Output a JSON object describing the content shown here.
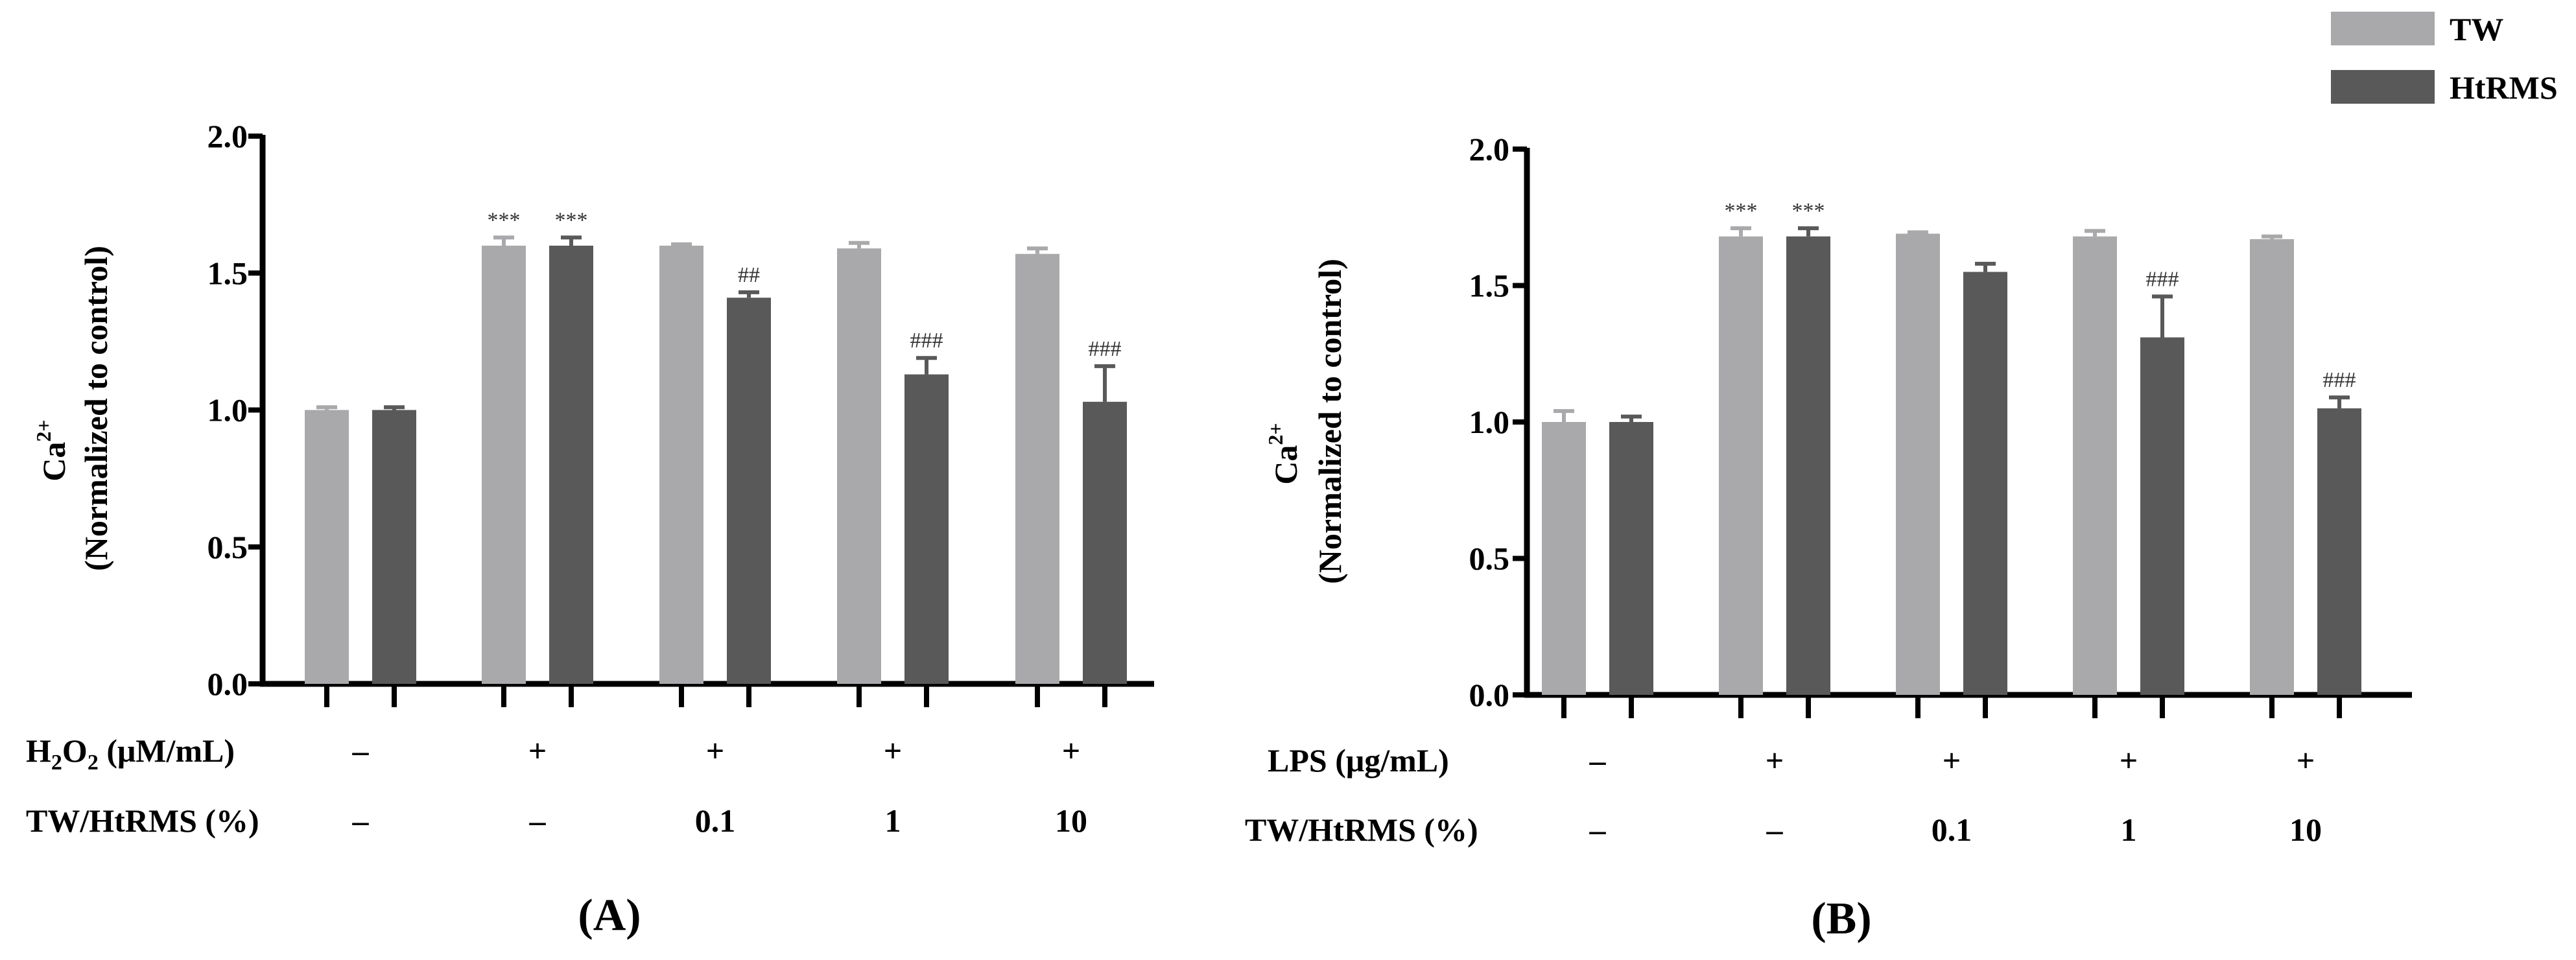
{
  "legend": {
    "items": [
      {
        "label": "TW",
        "color": "#a9a9ab"
      },
      {
        "label": "HtRMS",
        "color": "#595959"
      }
    ]
  },
  "chart_data": [
    {
      "type": "bar",
      "panel_label": "(A)",
      "ylabel_main": "Ca",
      "ylabel_sup": "2+",
      "ylabel_sub": "(Normalized to control)",
      "ylim": [
        0,
        2.0
      ],
      "yticks": [
        "0.0",
        "0.5",
        "1.0",
        "1.5",
        "2.0"
      ],
      "treatment_label": "H2O2 (μM/mL)",
      "treatment_row": [
        "–",
        "+",
        "+",
        "+",
        "+"
      ],
      "dose_label": "TW/HtRMS (%)",
      "dose_row": [
        "–",
        "–",
        "0.1",
        "1",
        "10"
      ],
      "series": [
        {
          "name": "TW",
          "values": [
            1.0,
            1.6,
            1.6,
            1.59,
            1.57
          ],
          "errors": [
            0.01,
            0.03,
            0.005,
            0.02,
            0.02
          ],
          "sig": [
            "",
            "***",
            "",
            "",
            ""
          ]
        },
        {
          "name": "HtRMS",
          "values": [
            1.0,
            1.6,
            1.41,
            1.13,
            1.03
          ],
          "errors": [
            0.01,
            0.03,
            0.02,
            0.06,
            0.13
          ],
          "sig": [
            "",
            "***",
            "##",
            "###",
            "###"
          ]
        }
      ]
    },
    {
      "type": "bar",
      "panel_label": "(B)",
      "ylabel_main": "Ca",
      "ylabel_sup": "2+",
      "ylabel_sub": "(Normalized to control)",
      "ylim": [
        0,
        2.0
      ],
      "yticks": [
        "0.0",
        "0.5",
        "1.0",
        "1.5",
        "2.0"
      ],
      "treatment_label": "LPS (μg/mL)",
      "treatment_row": [
        "–",
        "+",
        "+",
        "+",
        "+"
      ],
      "dose_label": "TW/HtRMS (%)",
      "dose_row": [
        "–",
        "–",
        "0.1",
        "1",
        "10"
      ],
      "series": [
        {
          "name": "TW",
          "values": [
            1.0,
            1.68,
            1.69,
            1.68,
            1.67
          ],
          "errors": [
            0.04,
            0.03,
            0.005,
            0.02,
            0.01
          ],
          "sig": [
            "",
            "***",
            "",
            "",
            ""
          ]
        },
        {
          "name": "HtRMS",
          "values": [
            1.0,
            1.68,
            1.55,
            1.31,
            1.05
          ],
          "errors": [
            0.02,
            0.03,
            0.03,
            0.15,
            0.04
          ],
          "sig": [
            "",
            "***",
            "",
            "###",
            "###"
          ]
        }
      ]
    }
  ]
}
